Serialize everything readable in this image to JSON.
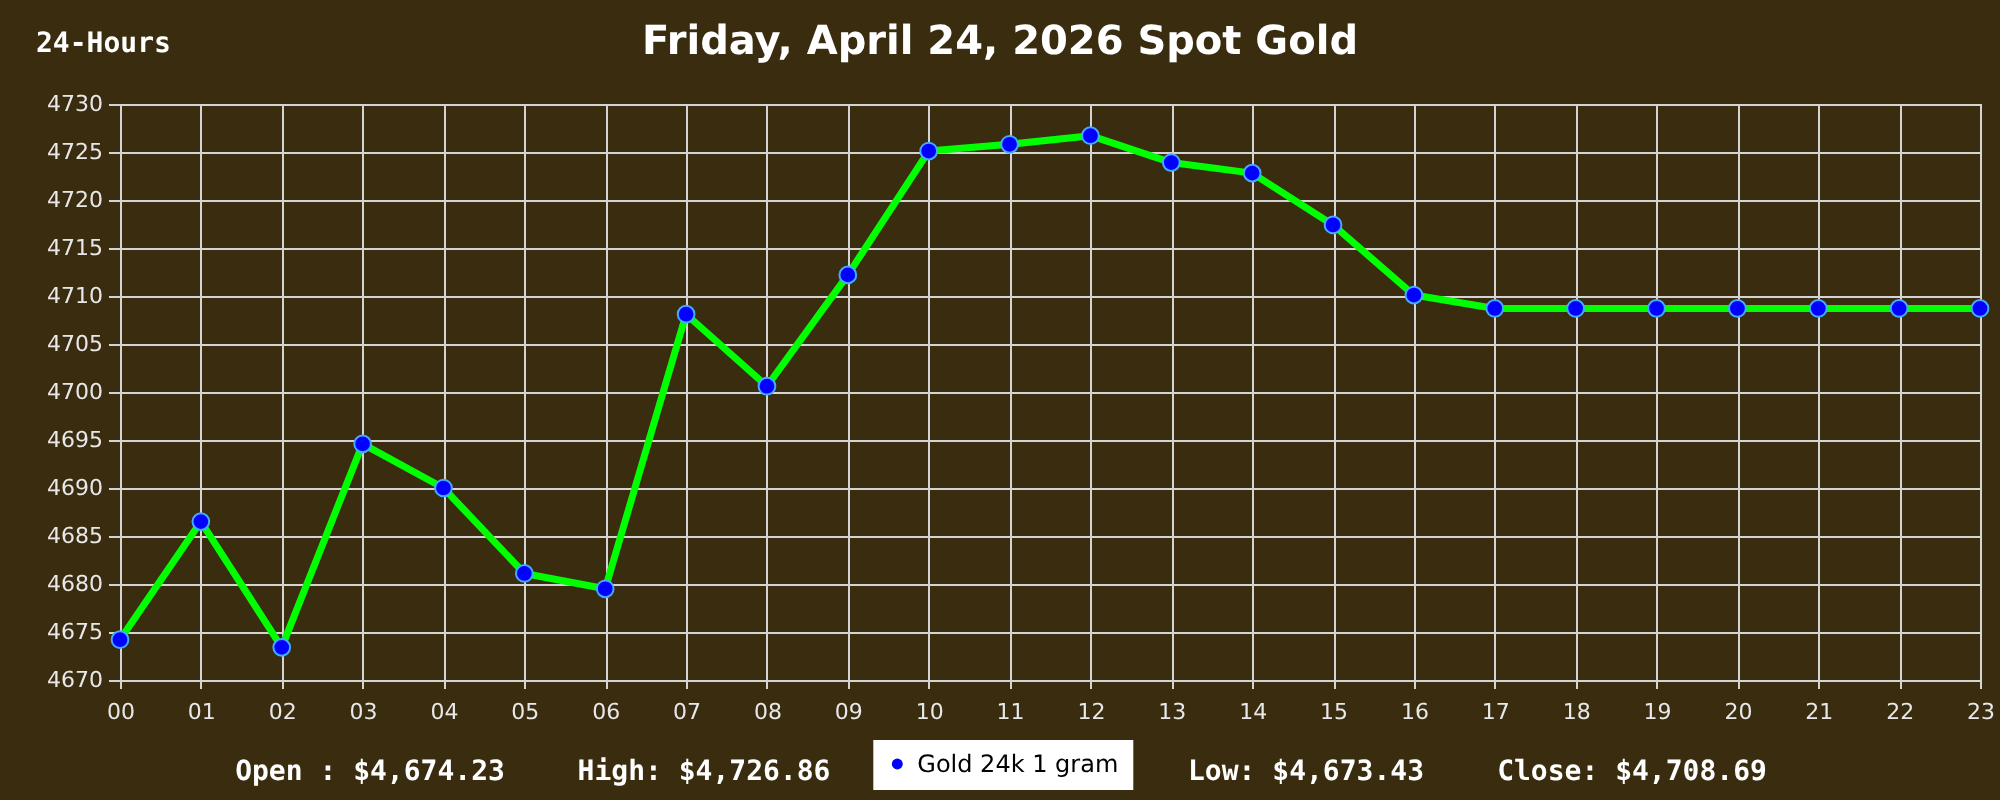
{
  "chart_data": {
    "type": "line",
    "title": "Friday, April 24, 2026 Spot Gold",
    "annotations": [
      "24-Hours",
      "Open : $4,674.23",
      "High: $4,726.86",
      "Low: $4,673.43",
      "Close: $4,708.69"
    ],
    "categories": [
      "00",
      "01",
      "02",
      "03",
      "04",
      "05",
      "06",
      "07",
      "08",
      "09",
      "10",
      "11",
      "12",
      "13",
      "14",
      "15",
      "16",
      "17",
      "18",
      "19",
      "20",
      "21",
      "22",
      "23"
    ],
    "series": [
      {
        "color": "#00ff00",
        "marker": "none",
        "values": [
          4674.2,
          4686.5,
          4673.4,
          4694.6,
          4690.0,
          4681.1,
          4679.5,
          4708.1,
          4700.6,
          4712.2,
          4725.1,
          4725.8,
          4726.7,
          4723.9,
          4722.8,
          4717.4,
          4710.1,
          4708.7,
          4708.7,
          4708.7,
          4708.7,
          4708.7,
          4708.7,
          4708.7
        ]
      },
      {
        "type": "scatter",
        "name": "Gold 24k 1 gram",
        "color": "#0000ff",
        "values": [
          4674.2,
          4686.5,
          4673.4,
          4694.6,
          4690.0,
          4681.1,
          4679.5,
          4708.1,
          4700.6,
          4712.2,
          4725.1,
          4725.8,
          4726.7,
          4723.9,
          4722.8,
          4717.4,
          4710.1,
          4708.7,
          4708.7,
          4708.7,
          4708.7,
          4708.7,
          4708.7,
          4708.7
        ]
      }
    ],
    "ylim": [
      4670,
      4730
    ],
    "yticks": [
      4670,
      4675,
      4680,
      4685,
      4690,
      4695,
      4700,
      4705,
      4710,
      4715,
      4720,
      4725,
      4730
    ],
    "grid": true,
    "legend": "bottom",
    "marker": "circle",
    "line_style": "solid"
  }
}
